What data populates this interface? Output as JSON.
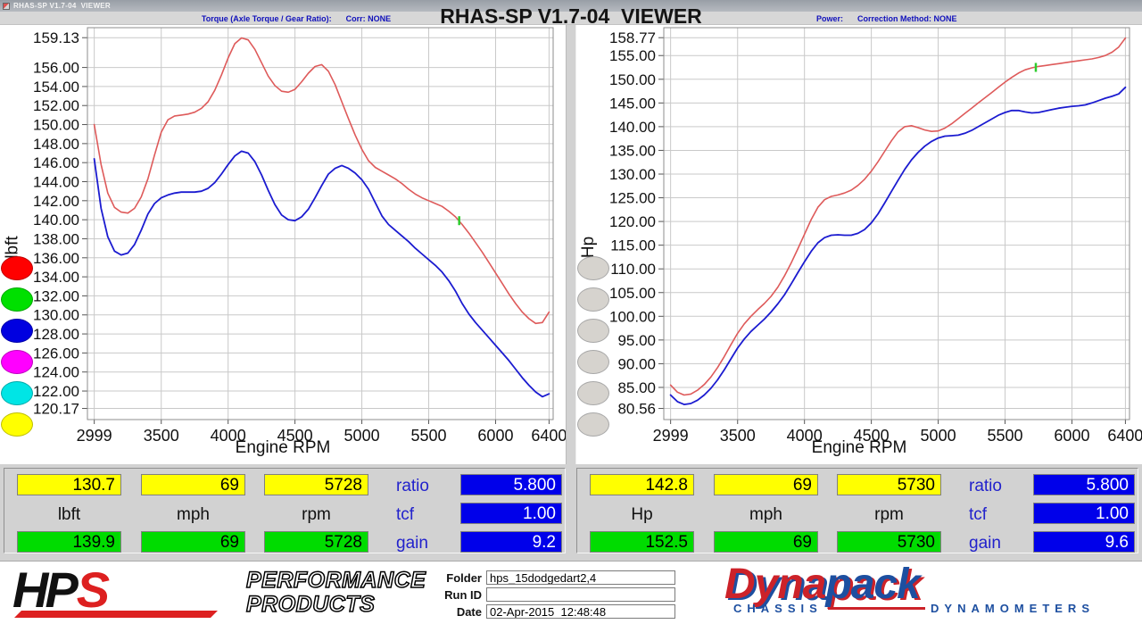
{
  "window": {
    "title": "RHAS-SP V1.7-04  VIEWER"
  },
  "header": {
    "left_label": "Torque (Axle Torque / Gear Ratio):",
    "left_corr": "Corr: NONE",
    "center": "RHAS-SP V1.7-04  VIEWER",
    "right_label": "Power:",
    "right_corr": "Correction Method: NONE"
  },
  "colors": {
    "curve_red": "#de5a5a",
    "curve_blue": "#1b1bd0",
    "field_yellow": "#ffff00",
    "field_green": "#00dc00",
    "field_blue": "#0000ea",
    "label_blue": "#2222cc",
    "cursor_green": "#2ecc2e"
  },
  "legend": {
    "left": [
      "#ff0000",
      "#00e000",
      "#0000e0",
      "#ff00ff",
      "#00e5e5",
      "#ffff00"
    ],
    "right": [
      "#d6d3ce",
      "#d6d3ce",
      "#d6d3ce",
      "#d6d3ce",
      "#d6d3ce",
      "#d6d3ce"
    ]
  },
  "chart_data": [
    {
      "type": "line",
      "title": "Torque (Axle Torque / Gear Ratio)",
      "xlabel": "Engine RPM",
      "ylabel": "lbft",
      "grid": true,
      "xlim": [
        2999,
        6400
      ],
      "ylim": [
        120.17,
        159.13
      ],
      "xticks": [
        2999,
        3500,
        4000,
        4500,
        5000,
        5500,
        6000,
        6400
      ],
      "xtick_labels": [
        "2999",
        "3500",
        "4000",
        "4500",
        "5000",
        "5500",
        "6000",
        "6400"
      ],
      "yticks": [
        159.13,
        156,
        154,
        152,
        150,
        148,
        146,
        144,
        142,
        140,
        138,
        136,
        134,
        132,
        130,
        128,
        126,
        124,
        122,
        120.17
      ],
      "ytick_labels": [
        "159.13",
        "156.00",
        "154.00",
        "152.00",
        "150.00",
        "148.00",
        "146.00",
        "144.00",
        "142.00",
        "140.00",
        "138.00",
        "136.00",
        "134.00",
        "132.00",
        "130.00",
        "128.00",
        "126.00",
        "124.00",
        "122.00",
        "120.17"
      ],
      "x": [
        2999,
        3050,
        3100,
        3150,
        3200,
        3250,
        3300,
        3350,
        3400,
        3450,
        3500,
        3550,
        3600,
        3650,
        3700,
        3750,
        3800,
        3850,
        3900,
        3950,
        4000,
        4050,
        4100,
        4150,
        4200,
        4250,
        4300,
        4350,
        4400,
        4450,
        4500,
        4550,
        4600,
        4650,
        4700,
        4750,
        4800,
        4850,
        4900,
        4950,
        5000,
        5050,
        5100,
        5150,
        5200,
        5250,
        5300,
        5350,
        5400,
        5450,
        5500,
        5550,
        5600,
        5650,
        5700,
        5750,
        5800,
        5850,
        5900,
        5950,
        6000,
        6050,
        6100,
        6150,
        6200,
        6250,
        6300,
        6350,
        6400
      ],
      "series": [
        {
          "name": "torque-red-curve",
          "color": "#de5a5a",
          "width": 1.6,
          "values": [
            150.0,
            145.8,
            142.8,
            141.3,
            140.8,
            140.7,
            141.2,
            142.4,
            144.3,
            146.8,
            149.2,
            150.5,
            150.9,
            151.0,
            151.1,
            151.3,
            151.7,
            152.4,
            153.6,
            155.2,
            157.0,
            158.5,
            159.1,
            158.9,
            157.9,
            156.5,
            155.1,
            154.1,
            153.5,
            153.4,
            153.7,
            154.5,
            155.4,
            156.1,
            156.3,
            155.6,
            154.2,
            152.4,
            150.6,
            148.9,
            147.4,
            146.2,
            145.5,
            145.1,
            144.7,
            144.3,
            143.8,
            143.2,
            142.7,
            142.3,
            142.0,
            141.7,
            141.4,
            140.9,
            140.3,
            139.5,
            138.6,
            137.6,
            136.6,
            135.5,
            134.4,
            133.3,
            132.2,
            131.2,
            130.3,
            129.6,
            129.1,
            129.2,
            130.3
          ]
        },
        {
          "name": "torque-blue-curve",
          "color": "#1b1bd0",
          "width": 1.8,
          "values": [
            146.4,
            141.2,
            138.2,
            136.7,
            136.3,
            136.5,
            137.4,
            138.9,
            140.6,
            141.7,
            142.3,
            142.6,
            142.8,
            142.9,
            142.9,
            142.9,
            143.0,
            143.3,
            143.9,
            144.8,
            145.8,
            146.7,
            147.2,
            147.0,
            146.1,
            144.7,
            143.1,
            141.6,
            140.5,
            140.0,
            139.9,
            140.3,
            141.1,
            142.3,
            143.6,
            144.8,
            145.4,
            145.7,
            145.4,
            144.9,
            144.2,
            143.2,
            141.8,
            140.4,
            139.5,
            138.9,
            138.3,
            137.7,
            137.0,
            136.4,
            135.8,
            135.2,
            134.5,
            133.6,
            132.5,
            131.2,
            130.1,
            129.2,
            128.4,
            127.6,
            126.8,
            126.0,
            125.2,
            124.3,
            123.4,
            122.6,
            121.9,
            121.4,
            121.7
          ]
        }
      ],
      "cursor": {
        "x": 5728,
        "y": 139.9,
        "color": "#2ecc2e"
      }
    },
    {
      "type": "line",
      "title": "Power",
      "xlabel": "Engine RPM",
      "ylabel": "Hp",
      "grid": true,
      "xlim": [
        2999,
        6400
      ],
      "ylim": [
        80.56,
        158.77
      ],
      "xticks": [
        2999,
        3500,
        4000,
        4500,
        5000,
        5500,
        6000,
        6400
      ],
      "xtick_labels": [
        "2999",
        "3500",
        "4000",
        "4500",
        "5000",
        "5500",
        "6000",
        "6400"
      ],
      "yticks": [
        158.77,
        155,
        150,
        145,
        140,
        135,
        130,
        125,
        120,
        115,
        110,
        105,
        100,
        95,
        90,
        85,
        80.56
      ],
      "ytick_labels": [
        "158.77",
        "155.00",
        "150.00",
        "145.00",
        "140.00",
        "135.00",
        "130.00",
        "125.00",
        "120.00",
        "115.00",
        "110.00",
        "105.00",
        "100.00",
        "95.00",
        "90.00",
        "85.00",
        "80.56"
      ],
      "x": [
        2999,
        3050,
        3100,
        3150,
        3200,
        3250,
        3300,
        3350,
        3400,
        3450,
        3500,
        3550,
        3600,
        3650,
        3700,
        3750,
        3800,
        3850,
        3900,
        3950,
        4000,
        4050,
        4100,
        4150,
        4200,
        4250,
        4300,
        4350,
        4400,
        4450,
        4500,
        4550,
        4600,
        4650,
        4700,
        4750,
        4800,
        4850,
        4900,
        4950,
        5000,
        5050,
        5100,
        5150,
        5200,
        5250,
        5300,
        5350,
        5400,
        5450,
        5500,
        5550,
        5600,
        5650,
        5700,
        5750,
        5800,
        5850,
        5900,
        5950,
        6000,
        6050,
        6100,
        6150,
        6200,
        6250,
        6300,
        6350,
        6400
      ],
      "series": [
        {
          "name": "power-red-curve",
          "color": "#de5a5a",
          "width": 1.6,
          "values": [
            85.5,
            84.0,
            83.4,
            83.6,
            84.4,
            85.6,
            87.2,
            89.2,
            91.5,
            94.0,
            96.4,
            98.4,
            100.0,
            101.4,
            102.7,
            104.2,
            106.1,
            108.5,
            111.2,
            114.2,
            117.3,
            120.4,
            123.0,
            124.6,
            125.3,
            125.6,
            126.0,
            126.6,
            127.6,
            128.9,
            130.6,
            132.6,
            134.8,
            137.0,
            138.9,
            140.0,
            140.2,
            139.8,
            139.3,
            139.0,
            139.1,
            139.7,
            140.6,
            141.7,
            142.8,
            143.9,
            145.0,
            146.1,
            147.2,
            148.3,
            149.4,
            150.4,
            151.3,
            152.0,
            152.4,
            152.7,
            152.9,
            153.1,
            153.3,
            153.5,
            153.7,
            153.9,
            154.1,
            154.3,
            154.6,
            155.0,
            155.7,
            156.8,
            158.7
          ]
        },
        {
          "name": "power-blue-curve",
          "color": "#1b1bd0",
          "width": 1.8,
          "values": [
            83.4,
            82.0,
            81.4,
            81.6,
            82.3,
            83.4,
            84.8,
            86.6,
            88.7,
            91.0,
            93.3,
            95.2,
            96.8,
            98.1,
            99.4,
            100.9,
            102.6,
            104.5,
            106.8,
            109.2,
            111.5,
            113.7,
            115.5,
            116.6,
            117.1,
            117.2,
            117.1,
            117.1,
            117.5,
            118.3,
            119.7,
            121.6,
            123.9,
            126.3,
            128.7,
            131.0,
            133.0,
            134.6,
            135.9,
            136.9,
            137.6,
            138.0,
            138.1,
            138.2,
            138.6,
            139.2,
            140.0,
            140.8,
            141.6,
            142.4,
            143.0,
            143.4,
            143.4,
            143.1,
            142.9,
            143.0,
            143.3,
            143.6,
            143.9,
            144.1,
            144.3,
            144.4,
            144.6,
            145.0,
            145.5,
            146.0,
            146.4,
            146.9,
            148.3
          ]
        }
      ],
      "cursor": {
        "x": 5730,
        "y": 152.5,
        "color": "#2ecc2e"
      }
    }
  ],
  "readouts": {
    "left": {
      "row1": [
        "130.7",
        "69",
        "5728"
      ],
      "units": [
        "lbft",
        "mph",
        "rpm"
      ],
      "row3": [
        "139.9",
        "69",
        "5728"
      ],
      "ratio_label": "ratio",
      "ratio": "5.800",
      "tcf_label": "tcf",
      "tcf": "1.00",
      "gain_label": "gain",
      "gain": "9.2"
    },
    "right": {
      "row1": [
        "142.8",
        "69",
        "5730"
      ],
      "units": [
        "Hp",
        "mph",
        "rpm"
      ],
      "row3": [
        "152.5",
        "69",
        "5730"
      ],
      "ratio_label": "ratio",
      "ratio": "5.800",
      "tcf_label": "tcf",
      "tcf": "1.00",
      "gain_label": "gain",
      "gain": "9.6"
    }
  },
  "footer": {
    "hps": {
      "hp": "HP",
      "s": "S",
      "line1": "PERFORMANCE",
      "line2": "PRODUCTS"
    },
    "form": {
      "folder_label": "Folder",
      "folder": "hps_15dodgedart2,4",
      "run_label": "Run ID",
      "run_id": "",
      "date_label": "Date",
      "date": "02-Apr-2015  12:48:48"
    },
    "dynapack": {
      "word1": "Dyna",
      "word2": "pack",
      "sub1": "CHASSIS",
      "sub2": "DYNAMOMETERS"
    }
  }
}
